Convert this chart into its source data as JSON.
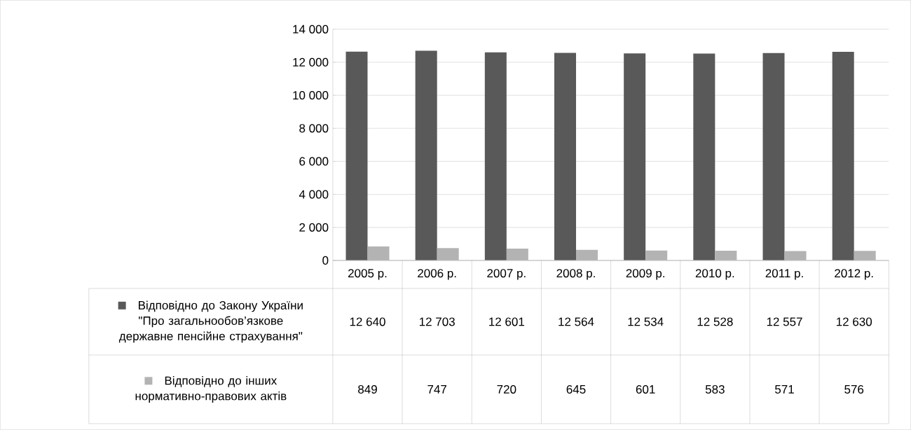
{
  "chart_data": {
    "type": "bar",
    "categories": [
      "2005 р.",
      "2006 р.",
      "2007 р.",
      "2008 р.",
      "2009 р.",
      "2010 р.",
      "2011 р.",
      "2012 р."
    ],
    "series": [
      {
        "name": "Відповідно до Закону України \"Про загальнообов’язкове державне пенсійне страхування\"",
        "color": "#595959",
        "values": [
          12640,
          12703,
          12601,
          12564,
          12534,
          12528,
          12557,
          12630
        ],
        "value_labels": [
          "12 640",
          "12 703",
          "12 601",
          "12 564",
          "12 534",
          "12 528",
          "12 557",
          "12 630"
        ]
      },
      {
        "name": "Відповідно до інших нормативно-правових актів",
        "color": "#b3b3b3",
        "values": [
          849,
          747,
          720,
          645,
          601,
          583,
          571,
          576
        ],
        "value_labels": [
          "849",
          "747",
          "720",
          "645",
          "601",
          "583",
          "571",
          "576"
        ]
      }
    ],
    "ylim": [
      0,
      14000
    ],
    "yticks": [
      0,
      {
        "value": 2000,
        "label": "2 000"
      },
      {
        "value": 4000,
        "label": "4 000"
      },
      {
        "value": 6000,
        "label": "6 000"
      },
      {
        "value": 8000,
        "label": "8 000"
      },
      {
        "value": 10000,
        "label": "10 000"
      },
      {
        "value": 12000,
        "label": "12 000"
      },
      {
        "value": 14000,
        "label": "14 000"
      }
    ],
    "grid": "y",
    "legend": "bottom left"
  }
}
